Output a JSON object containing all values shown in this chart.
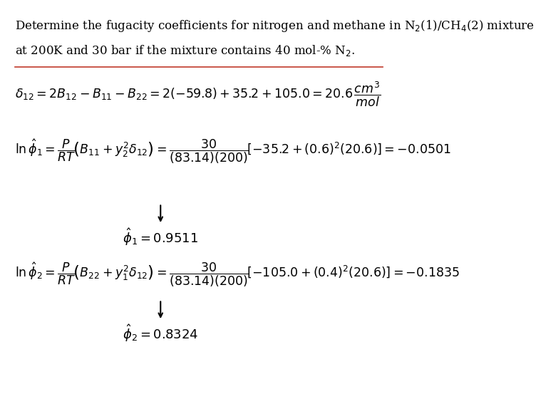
{
  "background_color": "#ffffff",
  "title_text": "Determine the fugacity coefficients for nitrogen and methane in N$_2$(1)/CH$_4$(2) mixture\nat 200K and 30 bar if the mixture contains 40 mol-% N$_2$.",
  "title_fontsize": 12,
  "line_color": "#c0392b",
  "eq1": "$\\delta_{12} = 2B_{12} - B_{11} - B_{22} = 2(-59.8) + 35.2 + 105.0 = 20.6\\,\\dfrac{cm^3}{mol}$",
  "eq2": "$\\ln\\hat{\\phi}_1 = \\dfrac{P}{RT}\\left(B_{11} + y_2^2\\delta_{12}\\right) = \\dfrac{30}{(83.14)(200)}\\left[-35.2 + (0.6)^2(20.6)\\right] = -0.0501$",
  "eq3": "$\\hat{\\phi}_1 = 0.9511$",
  "eq4": "$\\ln\\hat{\\phi}_2 = \\dfrac{P}{RT}\\left(B_{22} + y_1^2\\delta_{12}\\right) = \\dfrac{30}{(83.14)(200)}\\left[-105.0 + (0.4)^2(20.6)\\right] = -0.1835$",
  "eq5": "$\\hat{\\phi}_2 = 0.8324$",
  "arrow_color": "#000000",
  "font_family": "serif"
}
